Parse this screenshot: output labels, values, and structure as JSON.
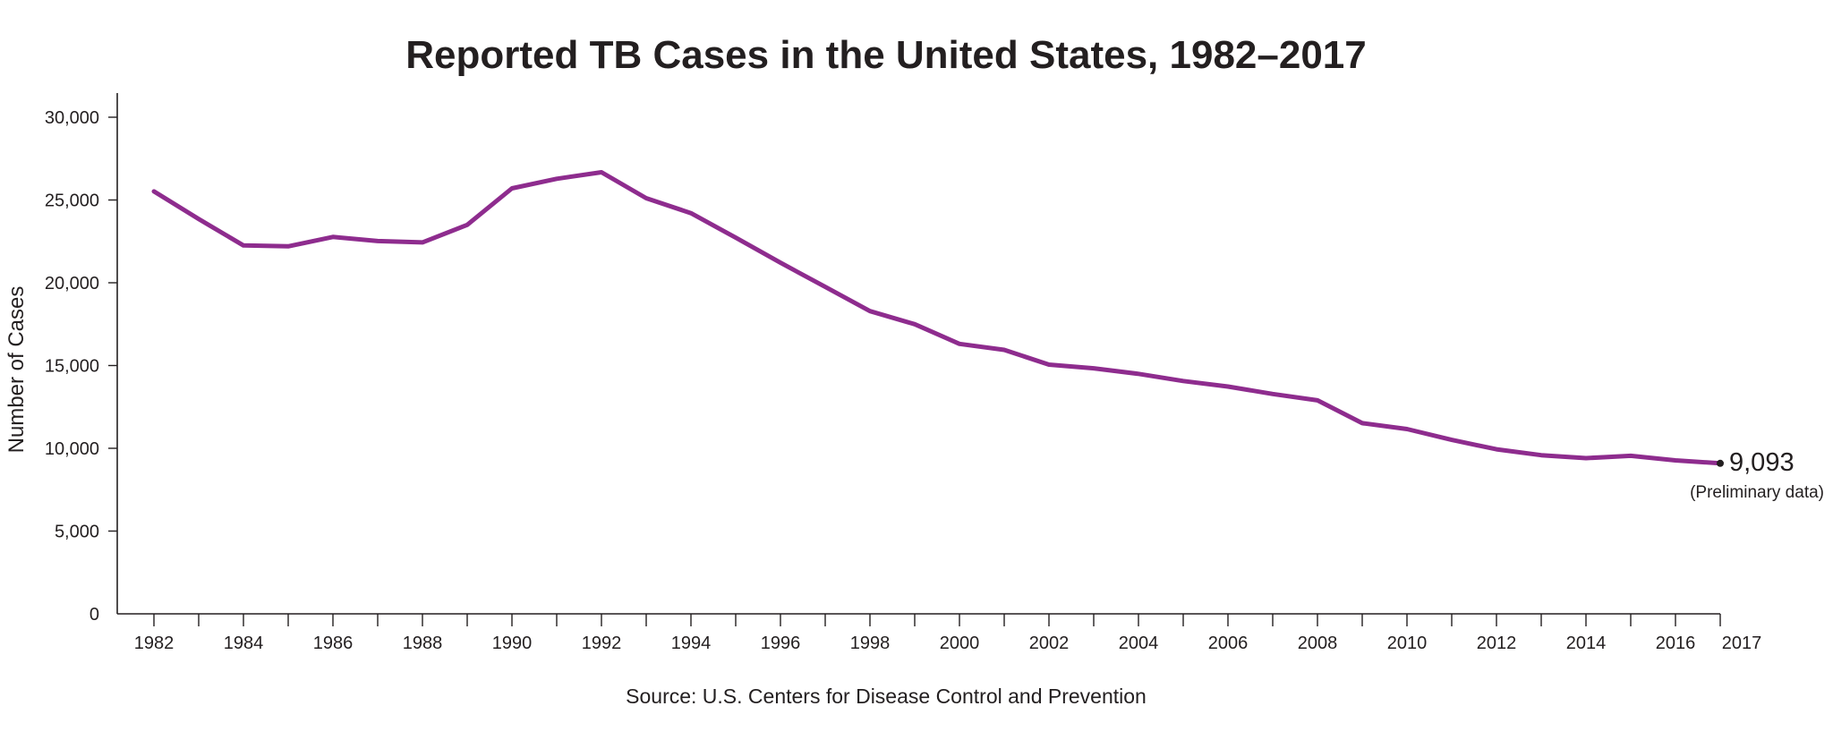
{
  "chart_data": {
    "type": "line",
    "title": "Reported TB Cases in the United States, 1982–2017",
    "xlabel": "",
    "ylabel": "Number of Cases",
    "source": "Source: U.S. Centers for Disease Control and Prevention",
    "xlim": [
      1982,
      2017
    ],
    "ylim": [
      0,
      30000
    ],
    "yticks": [
      0,
      5000,
      10000,
      15000,
      20000,
      25000,
      30000
    ],
    "ytick_labels": [
      "0",
      "5,000",
      "10,000",
      "15,000",
      "20,000",
      "25,000",
      "30,000"
    ],
    "xtick_labels": [
      "1982",
      "1984",
      "1986",
      "1988",
      "1990",
      "1992",
      "1994",
      "1996",
      "1998",
      "2000",
      "2002",
      "2004",
      "2006",
      "2008",
      "2010",
      "2012",
      "2014",
      "2016",
      "2017"
    ],
    "grid": false,
    "line_color": "#8e2c8e",
    "series": [
      {
        "x": [
          1982,
          1983,
          1984,
          1985,
          1986,
          1987,
          1988,
          1989,
          1990,
          1991,
          1992,
          1993,
          1994,
          1995,
          1996,
          1997,
          1998,
          1999,
          2000,
          2001,
          2002,
          2003,
          2004,
          2005,
          2006,
          2007,
          2008,
          2009,
          2010,
          2011,
          2012,
          2013,
          2014,
          2015,
          2016,
          2017
        ],
        "values": [
          25520,
          23846,
          22255,
          22201,
          22768,
          22517,
          22436,
          23495,
          25701,
          26283,
          26673,
          25107,
          24206,
          22726,
          21210,
          19751,
          18287,
          17500,
          16309,
          15945,
          15055,
          14835,
          14499,
          14065,
          13728,
          13280,
          12895,
          11520,
          11161,
          10510,
          9941,
          9582,
          9406,
          9547,
          9272,
          9093
        ]
      }
    ],
    "annotations": [
      {
        "x": 2017,
        "y": 9093,
        "label": "9,093",
        "note": "(Preliminary data)"
      }
    ]
  }
}
